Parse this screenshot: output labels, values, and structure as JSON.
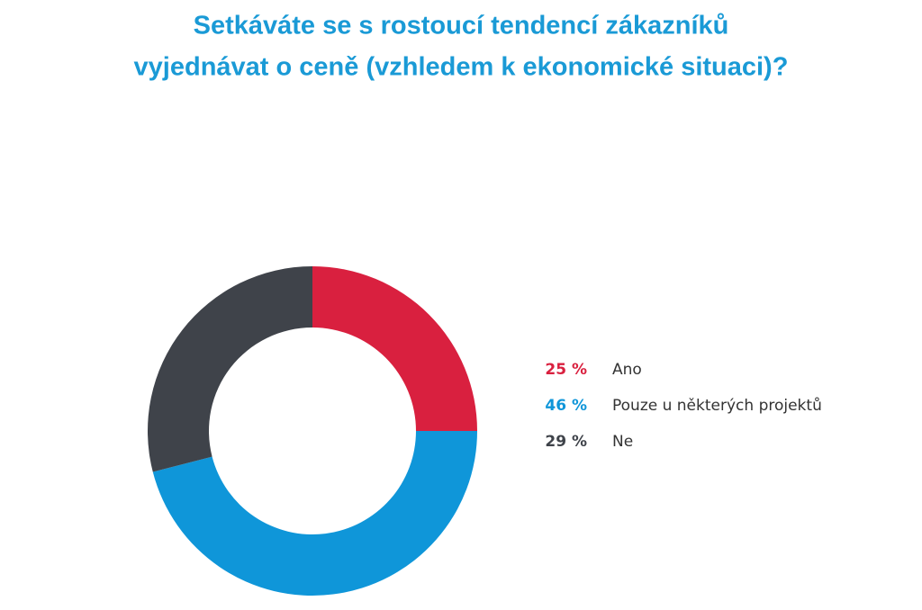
{
  "chart_data": {
    "type": "donut",
    "title": [
      "Setkáváte se s rostoucí tendencí zákazníků",
      "vyjednávat o ceně (vzhledem k ekonomické situaci)?"
    ],
    "categories": [
      "Ano",
      "Pouze u některých projektů",
      "Ne"
    ],
    "values": [
      25,
      46,
      29
    ],
    "value_labels": [
      "25 %",
      "46 %",
      "29 %"
    ],
    "colors": [
      "#d9203f",
      "#0f96d9",
      "#3f434a"
    ],
    "legend": "right"
  }
}
